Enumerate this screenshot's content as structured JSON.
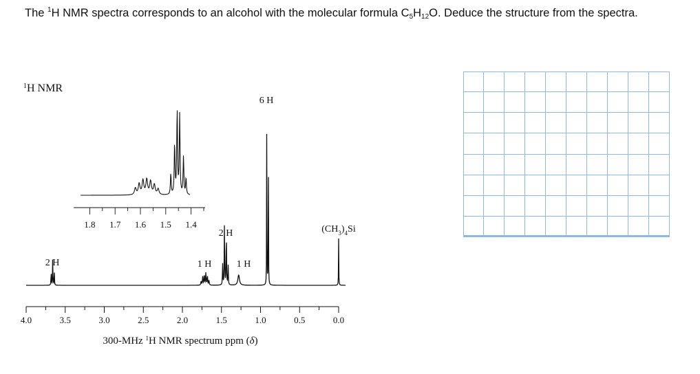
{
  "question": {
    "prefix": "The ",
    "nucleus_mass": "1",
    "mid": "H NMR spectra corresponds to an alcohol with the molecular formula C",
    "c_count": "5",
    "h_letter": "H",
    "h_count": "12",
    "suffix": "O. Deduce the structure from the spectra."
  },
  "chart_data": {
    "type": "line",
    "title": "1H NMR",
    "title_parts": {
      "sup": "1",
      "text": "H NMR"
    },
    "xlabel": "300-MHz 1H NMR spectrum ppm (δ)",
    "xlabel_parts": {
      "pre": "300-MHz ",
      "sup": "1",
      "post": "H NMR spectrum ppm (",
      "delta": "δ",
      "close": ")"
    },
    "xlim": [
      4.0,
      0.0
    ],
    "x_reversed": true,
    "x_ticks": [
      "4.0",
      "3.5",
      "3.0",
      "2.5",
      "2.0",
      "1.5",
      "1.0",
      "0.5",
      "0.0"
    ],
    "x_tick_values": [
      4.0,
      3.5,
      3.0,
      2.5,
      2.0,
      1.5,
      1.0,
      0.5,
      0.0
    ],
    "peaks": [
      {
        "shift": 3.66,
        "multiplicity": "triplet",
        "label": "2 H",
        "height": 0.16
      },
      {
        "shift": 1.71,
        "multiplicity": "multiplet",
        "label": "1 H",
        "height": 0.07
      },
      {
        "shift": 1.45,
        "multiplicity": "quartet",
        "label": "2 H",
        "height": 0.35
      },
      {
        "shift": 1.28,
        "multiplicity": "broad singlet",
        "label": "1 H",
        "height": 0.06
      },
      {
        "shift": 0.91,
        "multiplicity": "doublet",
        "label": "6 H",
        "height": 1.0
      },
      {
        "shift": 0.0,
        "multiplicity": "singlet",
        "label": "(CH3)4Si",
        "height": 0.27
      }
    ],
    "tms_label_parts": {
      "pre": "(CH",
      "sub": "3",
      "mid": ")",
      "sub2": "4",
      "post": "Si"
    },
    "inset": {
      "description_ticks": [
        "1.8",
        "1.7",
        "1.6",
        "1.5",
        "1.4"
      ],
      "tick_values": [
        1.8,
        1.7,
        1.6,
        1.5,
        1.4
      ],
      "xlim": [
        1.85,
        1.35
      ]
    }
  },
  "answer_grid": {
    "columns": 10,
    "rows": 8
  }
}
